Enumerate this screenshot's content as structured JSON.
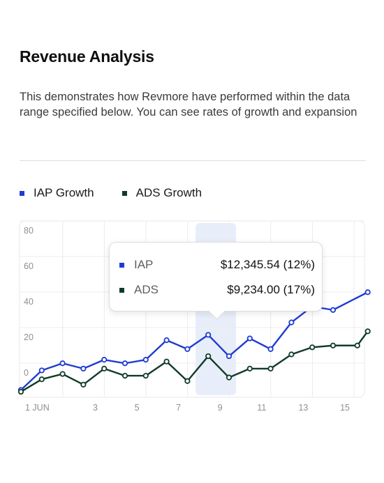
{
  "header": {
    "title": "Revenue Analysis",
    "description": "This demonstrates how Revmore have performed within the data range specified below. You can see rates of growth and expansion"
  },
  "legend": [
    {
      "label": "IAP Growth",
      "color": "#1f3bd1"
    },
    {
      "label": "ADS Growth",
      "color": "#0f3b28"
    }
  ],
  "tooltip": {
    "rows": [
      {
        "name": "IAP",
        "value": "$12,345.54 (12%)",
        "color": "#1f3bd1"
      },
      {
        "name": "ADS",
        "value": "$9,234.00 (17%)",
        "color": "#0f3b28"
      }
    ]
  },
  "chart_data": {
    "type": "line",
    "title": "",
    "xlabel": "",
    "ylabel": "",
    "x_tick_labels": [
      "1 JUN",
      "3",
      "5",
      "7",
      "9",
      "11",
      "13",
      "15"
    ],
    "y_tick_labels": [
      "0",
      "20",
      "40",
      "60",
      "80"
    ],
    "ylim": [
      -10,
      82
    ],
    "xlim": [
      0.2,
      16.7
    ],
    "grid": true,
    "highlight_x": 9.6,
    "series": [
      {
        "name": "IAP Growth",
        "color": "#1f3bd1",
        "x": [
          0.2,
          1.2,
          2.2,
          3.2,
          4.2,
          5.2,
          6.2,
          7.2,
          8.2,
          9.2,
          10.2,
          11.2,
          12.2,
          13.2,
          14.2,
          15.2,
          16.7
        ],
        "y": [
          -10,
          1,
          5,
          2,
          7,
          5,
          7,
          18,
          13,
          21,
          9,
          19,
          13,
          28,
          37,
          35,
          45
        ]
      },
      {
        "name": "ADS Growth",
        "color": "#0f3b28",
        "x": [
          0.2,
          1.2,
          2.2,
          3.2,
          4.2,
          5.2,
          6.2,
          7.2,
          8.2,
          9.2,
          10.2,
          11.2,
          12.2,
          13.2,
          14.2,
          15.2,
          16.2,
          16.7
        ],
        "y": [
          -11,
          -4,
          -1,
          -7,
          2,
          -2,
          -2,
          6,
          -5,
          9,
          -3,
          2,
          2,
          10,
          14,
          15,
          15,
          23
        ]
      }
    ]
  }
}
